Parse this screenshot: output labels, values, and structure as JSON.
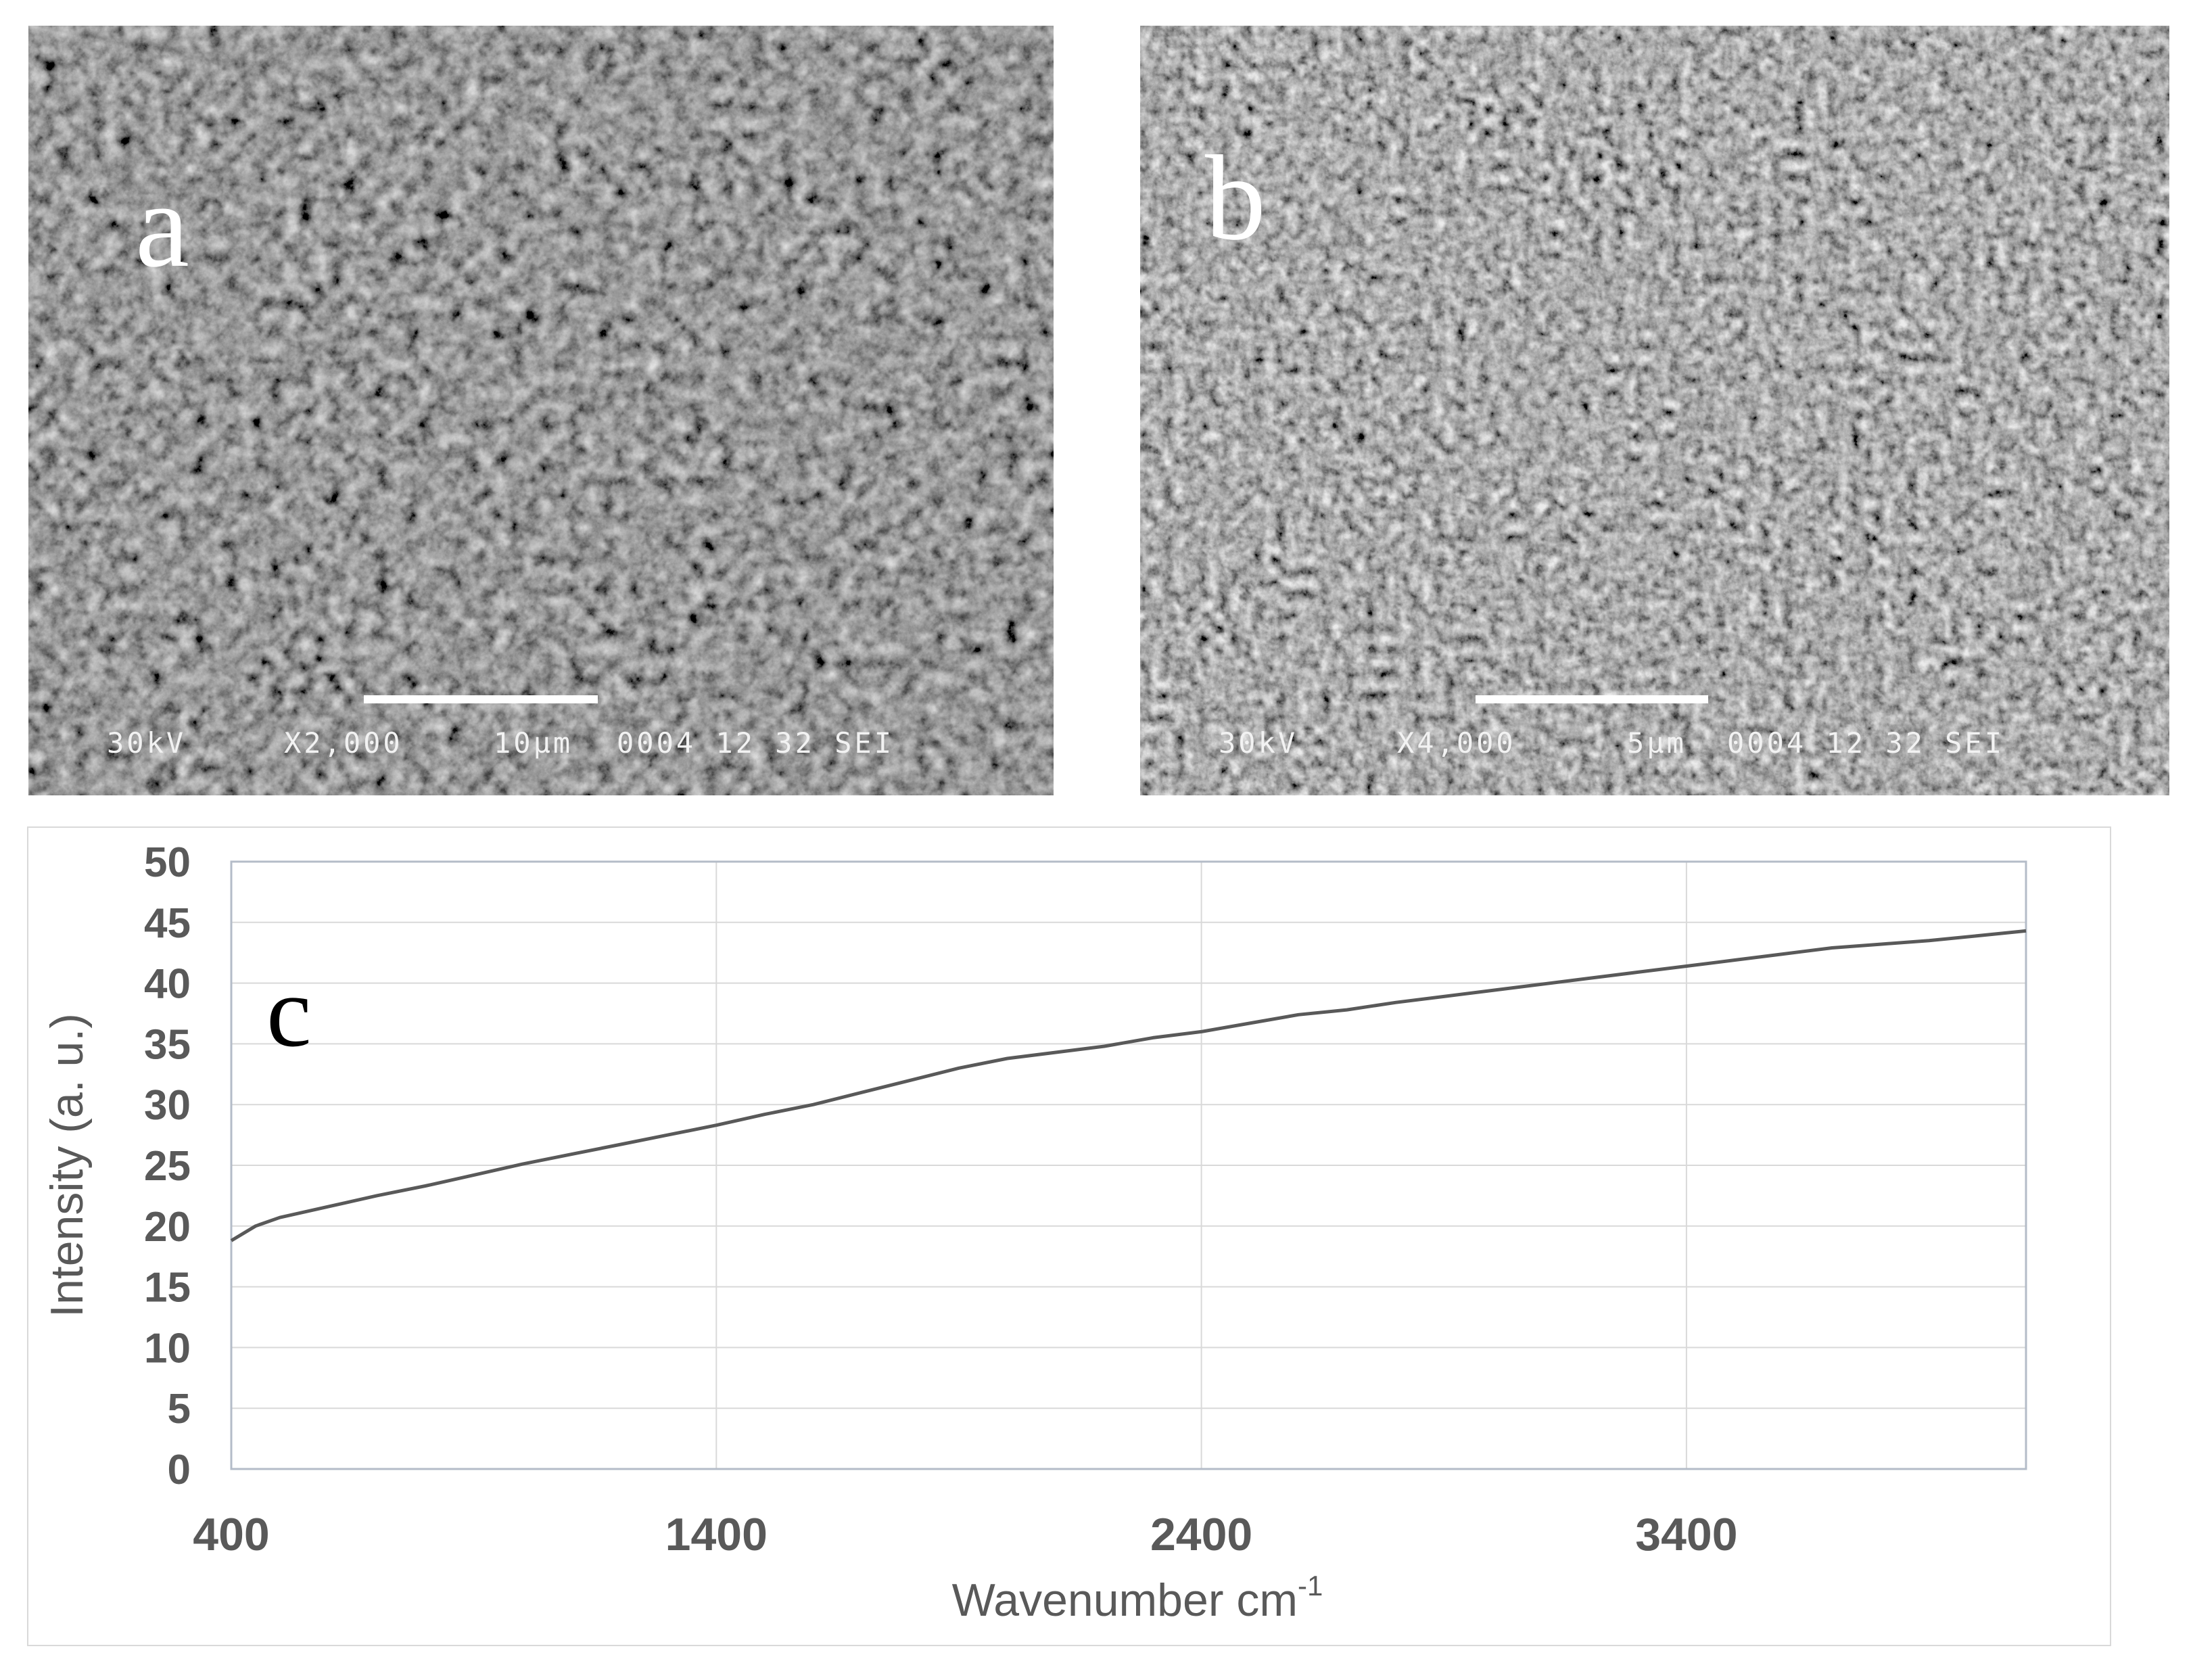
{
  "panels": {
    "a": {
      "letter": "a",
      "voltage": "30kV",
      "magnification": "X2,000",
      "scale": "10µm",
      "code": "0004 12 32 SEI"
    },
    "b": {
      "letter": "b",
      "voltage": "30kV",
      "magnification": "X4,000",
      "scale": "5µm",
      "code": "0004 12 32 SEI"
    }
  },
  "chart_data": {
    "type": "line",
    "panel_label": "c",
    "title": "",
    "xlabel": "Wavenumber cm",
    "xlabel_superscript": "-1",
    "ylabel": "Intensity (a. u.)",
    "xlim": [
      400,
      4100
    ],
    "ylim": [
      0,
      50
    ],
    "x_ticks": [
      400,
      1400,
      2400,
      3400
    ],
    "y_ticks": [
      0,
      5,
      10,
      15,
      20,
      25,
      30,
      35,
      40,
      45,
      50
    ],
    "grid": true,
    "legend": "none",
    "line_color": "#595959",
    "series": [
      {
        "x": [
          400,
          450,
          500,
          600,
          700,
          800,
          900,
          1000,
          1100,
          1200,
          1300,
          1400,
          1500,
          1600,
          1700,
          1800,
          1900,
          2000,
          2100,
          2200,
          2300,
          2400,
          2500,
          2600,
          2700,
          2800,
          2900,
          3000,
          3100,
          3200,
          3300,
          3400,
          3500,
          3600,
          3700,
          3800,
          3900,
          4000,
          4100
        ],
        "values": [
          18.8,
          20.0,
          20.7,
          21.6,
          22.5,
          23.3,
          24.2,
          25.1,
          25.9,
          26.7,
          27.5,
          28.3,
          29.2,
          30.0,
          31.0,
          32.0,
          33.0,
          33.8,
          34.3,
          34.8,
          35.5,
          36.0,
          36.7,
          37.4,
          37.8,
          38.4,
          38.9,
          39.4,
          39.9,
          40.4,
          40.9,
          41.4,
          41.9,
          42.4,
          42.9,
          43.2,
          43.5,
          43.9,
          44.3
        ]
      }
    ]
  }
}
